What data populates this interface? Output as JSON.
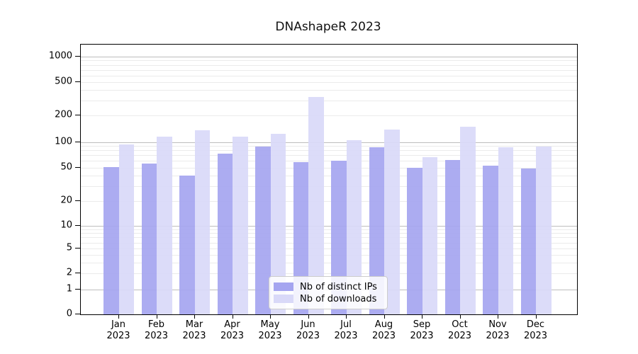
{
  "chart_data": {
    "type": "bar",
    "title": "DNAshapeR 2023",
    "categories": [
      "Jan",
      "Feb",
      "Mar",
      "Apr",
      "May",
      "Jun",
      "Jul",
      "Aug",
      "Sep",
      "Oct",
      "Nov",
      "Dec"
    ],
    "category_year": "2023",
    "series": [
      {
        "name": "Nb of distinct IPs",
        "color": "#a5a5f0",
        "values": [
          51,
          56,
          40,
          73,
          88,
          58,
          61,
          86,
          50,
          62,
          53,
          49
        ]
      },
      {
        "name": "Nb of downloads",
        "color": "#d9d9f8",
        "values": [
          93,
          114,
          136,
          116,
          123,
          335,
          105,
          138,
          66,
          148,
          87,
          89
        ]
      }
    ],
    "yscale": "symlog",
    "yticks": [
      0,
      1,
      2,
      5,
      10,
      20,
      50,
      100,
      200,
      500,
      1000
    ],
    "ylim": [
      0,
      1200
    ],
    "grid": "horizontal, log minor + major",
    "legend_position": "bottom-center",
    "colors": {
      "major_grid": "#bdbdbd",
      "minor_grid": "#ebebeb",
      "axis": "#000000",
      "text": "#000000"
    }
  }
}
